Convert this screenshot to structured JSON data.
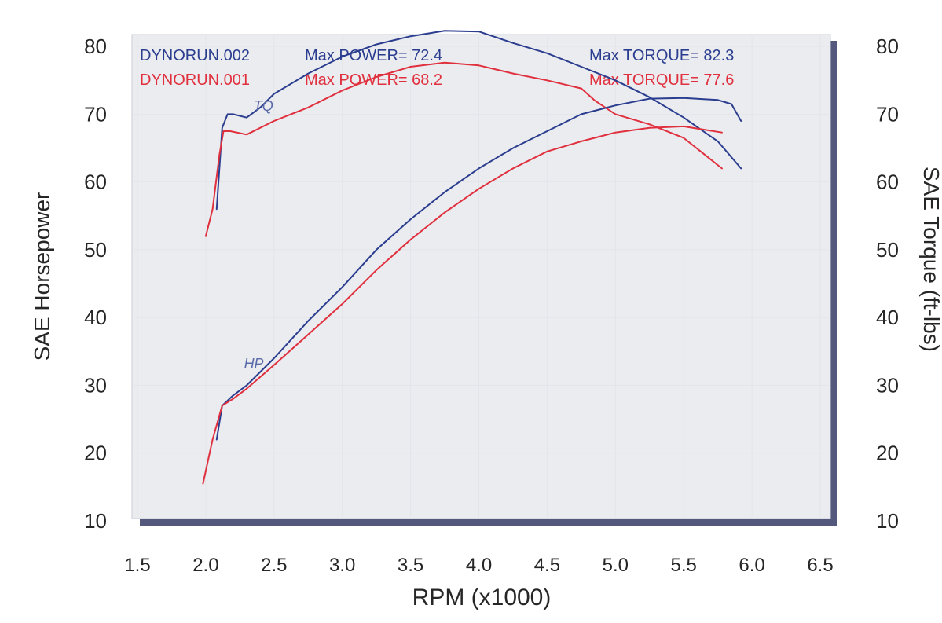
{
  "chart_data": {
    "type": "line",
    "title": "",
    "xlabel": "RPM (x1000)",
    "ylabel": "SAE Horsepower",
    "ylabel_right": "SAE Torque (ft-lbs)",
    "xlim": [
      1.5,
      6.5
    ],
    "ylim": [
      10,
      85
    ],
    "ylim_right": [
      10,
      85
    ],
    "x_ticks": [
      "1.5",
      "2.0",
      "2.5",
      "3.0",
      "3.5",
      "4.0",
      "4.5",
      "5.0",
      "5.5",
      "6.0",
      "6.5"
    ],
    "y_ticks": [
      "10",
      "20",
      "30",
      "40",
      "50",
      "60",
      "70",
      "80"
    ],
    "y_ticks_right": [
      "10",
      "20",
      "30",
      "40",
      "50",
      "60",
      "70",
      "80"
    ],
    "grid": true,
    "legend_placement": "top",
    "legend": [
      {
        "run": "DYNORUN.002",
        "power": "Max POWER= 72.4",
        "torque": "Max TORQUE= 82.3",
        "color": "#2b3d8f"
      },
      {
        "run": "DYNORUN.001",
        "power": "Max POWER= 68.2",
        "torque": "Max TORQUE= 77.6",
        "color": "#e0303e"
      }
    ],
    "annotations": [
      {
        "text": "TQ",
        "x": 2.35,
        "y": 70.5,
        "color": "#5a6aa8"
      },
      {
        "text": "HP",
        "x": 2.28,
        "y": 32.5,
        "color": "#5a6aa8"
      }
    ],
    "series": [
      {
        "kind": "torque",
        "run": "DYNORUN.002",
        "color": "#2b3d8f",
        "x": [
          2.08,
          2.12,
          2.16,
          2.2,
          2.3,
          2.4,
          2.5,
          2.75,
          3.0,
          3.25,
          3.5,
          3.75,
          4.0,
          4.25,
          4.5,
          4.75,
          5.0,
          5.25,
          5.5,
          5.75,
          5.92
        ],
        "y": [
          56,
          68,
          70,
          70,
          69.5,
          71,
          73,
          76,
          78.5,
          80.3,
          81.5,
          82.3,
          82.2,
          80.5,
          79,
          77,
          75,
          72.5,
          69.5,
          66,
          62
        ]
      },
      {
        "kind": "torque",
        "run": "DYNORUN.001",
        "color": "#e0303e",
        "x": [
          2.0,
          2.05,
          2.1,
          2.13,
          2.18,
          2.3,
          2.5,
          2.75,
          3.0,
          3.25,
          3.5,
          3.75,
          4.0,
          4.25,
          4.5,
          4.75,
          4.85,
          5.0,
          5.25,
          5.5,
          5.78
        ],
        "y": [
          52,
          56,
          64,
          67.5,
          67.5,
          67,
          69,
          71,
          73.5,
          75.5,
          77,
          77.6,
          77.2,
          76,
          75,
          73.8,
          72,
          70,
          68.5,
          66.5,
          62
        ]
      },
      {
        "kind": "power",
        "run": "DYNORUN.002",
        "color": "#2b3d8f",
        "x": [
          2.08,
          2.12,
          2.2,
          2.3,
          2.5,
          2.75,
          3.0,
          3.25,
          3.5,
          3.75,
          4.0,
          4.25,
          4.5,
          4.75,
          5.0,
          5.25,
          5.5,
          5.75,
          5.85,
          5.92
        ],
        "y": [
          22,
          27,
          28.5,
          30,
          34,
          39.5,
          44.5,
          50,
          54.5,
          58.5,
          62,
          65,
          67.5,
          70,
          71.3,
          72.3,
          72.4,
          72.1,
          71.5,
          69
        ]
      },
      {
        "kind": "power",
        "run": "DYNORUN.001",
        "color": "#e0303e",
        "x": [
          1.98,
          2.05,
          2.12,
          2.2,
          2.3,
          2.5,
          2.75,
          3.0,
          3.25,
          3.5,
          3.75,
          4.0,
          4.25,
          4.5,
          4.75,
          5.0,
          5.25,
          5.5,
          5.78
        ],
        "y": [
          15.5,
          22,
          27,
          28,
          29.5,
          33,
          37.5,
          42,
          47,
          51.5,
          55.5,
          59,
          62,
          64.5,
          66,
          67.3,
          68,
          68.2,
          67.3
        ]
      }
    ]
  },
  "colors": {
    "page_background": "#ffffff",
    "plot_background": "#ebecf0",
    "plot_shadow": "#54587c",
    "grid_line": "#e2e5e9",
    "tick_text": "#262626"
  }
}
